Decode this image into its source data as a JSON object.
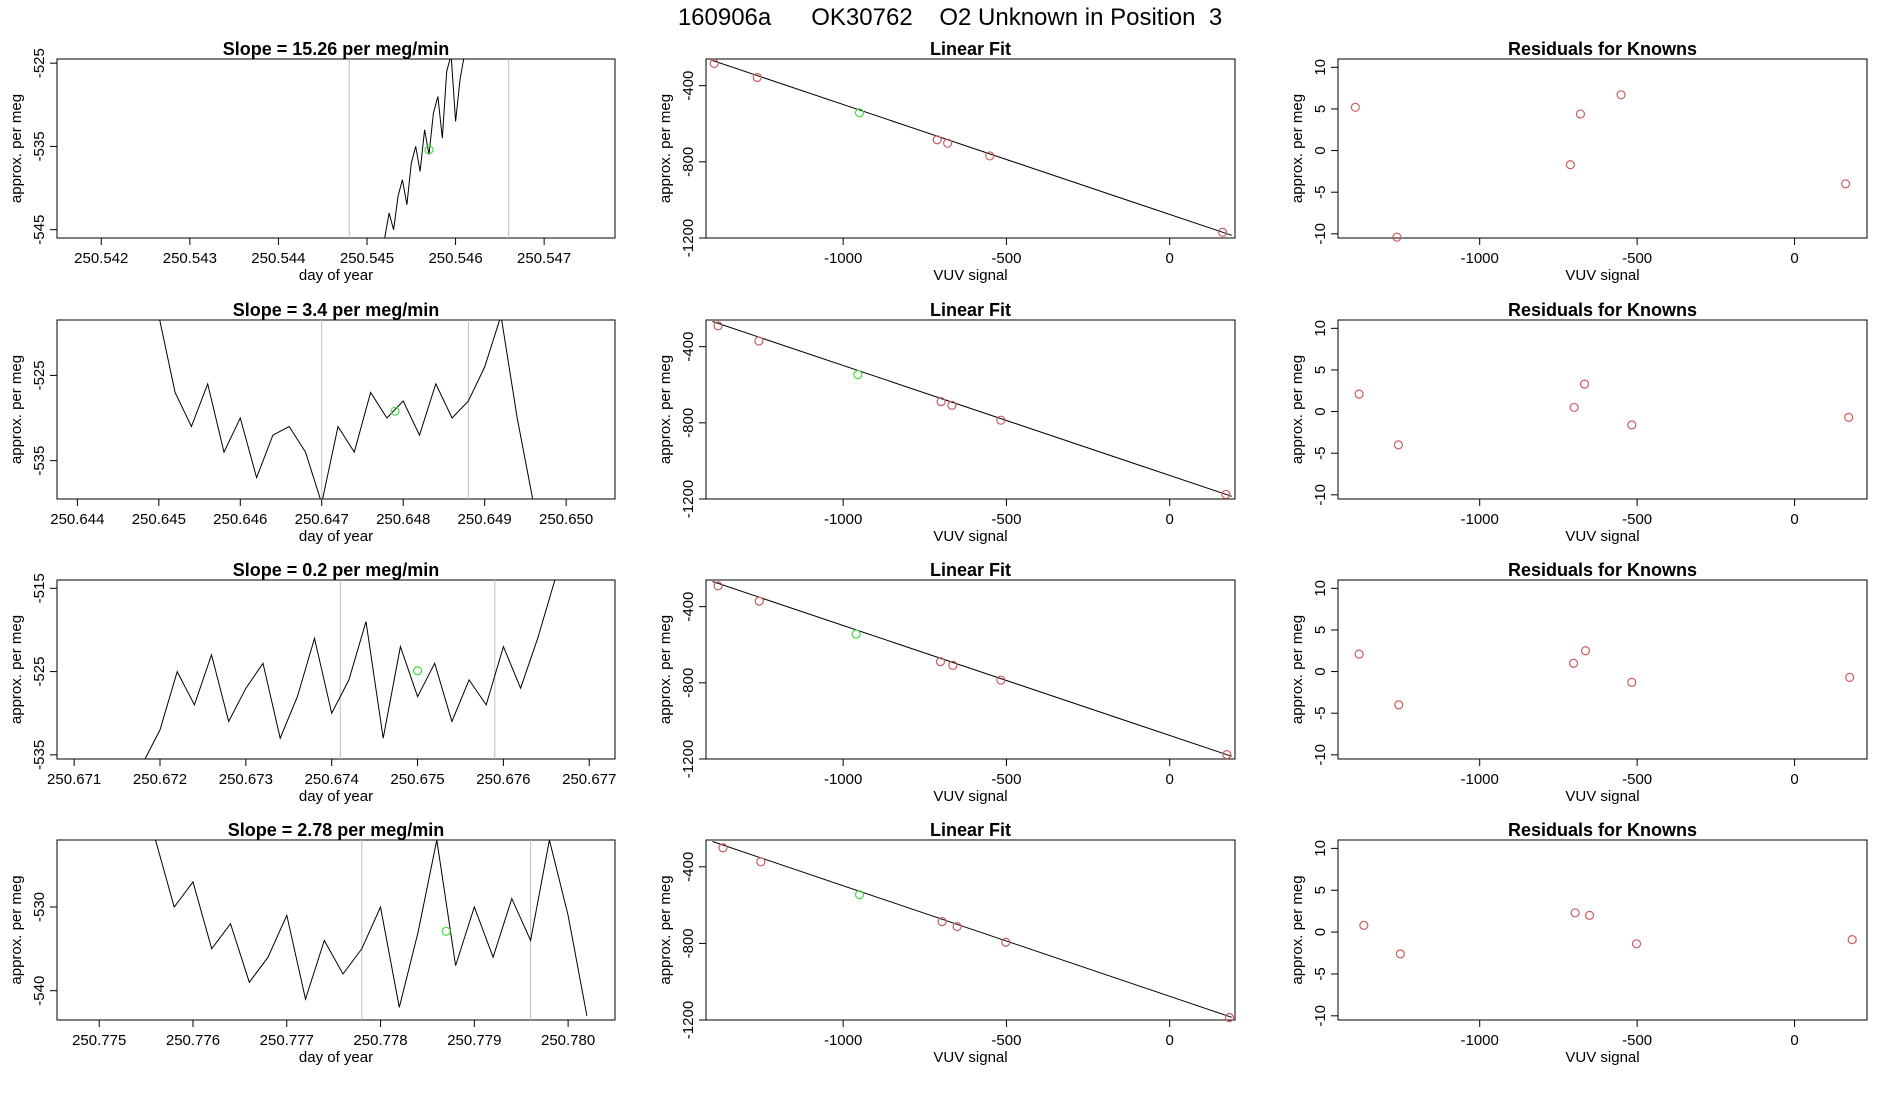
{
  "figure": {
    "title": "160906a      OK30762    O2 Unknown in Position  3",
    "colors": {
      "known_point": "#cd5c5c",
      "unknown_point": "#44dd44",
      "line": "#000000",
      "marker_line": "#bdbdbd"
    }
  },
  "chart_data": [
    {
      "type": "line",
      "row": 1,
      "col": 1,
      "title": "Slope =  15.26  per meg/min",
      "xlabel": "day of year",
      "ylabel": "approx. per meg",
      "xlim": [
        250.5415,
        250.5478
      ],
      "ylim": [
        -546,
        -524.5
      ],
      "xticks": [
        250.542,
        250.543,
        250.544,
        250.545,
        250.546,
        250.547
      ],
      "xtick_labels": [
        "250.542",
        "250.543",
        "250.544",
        "250.545",
        "250.546",
        "250.547"
      ],
      "yticks": [
        -545,
        -535,
        -525
      ],
      "ytick_labels": [
        "-545",
        "-535",
        "-525"
      ],
      "vlines": [
        250.5448,
        250.5466
      ],
      "series": [
        {
          "x": [
            250.5452,
            250.54525,
            250.5453,
            250.54535,
            250.5454,
            250.54545,
            250.5455,
            250.54555,
            250.5456,
            250.54565,
            250.5457,
            250.54575,
            250.5458,
            250.54585,
            250.5459,
            250.54595,
            250.546,
            250.54605,
            250.5461
          ],
          "y": [
            -546,
            -543,
            -545,
            -541,
            -539,
            -542,
            -537,
            -535,
            -538,
            -533,
            -536,
            -531,
            -529,
            -534,
            -526,
            -524,
            -532,
            -527,
            -524
          ]
        }
      ],
      "unknown_point": {
        "x": 250.5457,
        "y": -535.4
      }
    },
    {
      "type": "line",
      "row": 2,
      "col": 1,
      "title": "Slope =  3.4  per meg/min",
      "xlabel": "day of year",
      "ylabel": "approx. per meg",
      "xlim": [
        250.64375,
        250.6506
      ],
      "ylim": [
        -539.5,
        -518.5
      ],
      "xticks": [
        250.644,
        250.645,
        250.646,
        250.647,
        250.648,
        250.649,
        250.65
      ],
      "xtick_labels": [
        "250.644",
        "250.645",
        "250.646",
        "250.647",
        "250.648",
        "250.649",
        "250.650"
      ],
      "yticks": [
        -535,
        -525
      ],
      "ytick_labels": [
        "-535",
        "-525"
      ],
      "vlines": [
        250.647,
        250.6488
      ],
      "series": [
        {
          "x": [
            250.645,
            250.6452,
            250.6454,
            250.6456,
            250.6458,
            250.646,
            250.6462,
            250.6464,
            250.6466,
            250.6468,
            250.647,
            250.6472,
            250.6474,
            250.6476,
            250.6478,
            250.648,
            250.6482,
            250.6484,
            250.6486,
            250.6488,
            250.649,
            250.6492,
            250.6494,
            250.6496
          ],
          "y": [
            -518,
            -527,
            -531,
            -526,
            -534,
            -530,
            -537,
            -532,
            -531,
            -534,
            -540,
            -531,
            -534,
            -527,
            -530,
            -528,
            -532,
            -526,
            -530,
            -528,
            -524,
            -518,
            -530,
            -540
          ]
        }
      ],
      "unknown_point": {
        "x": 250.6479,
        "y": -529.2
      }
    },
    {
      "type": "line",
      "row": 3,
      "col": 1,
      "title": "Slope =  0.2  per meg/min",
      "xlabel": "day of year",
      "ylabel": "approx. per meg",
      "xlim": [
        250.6708,
        250.6773
      ],
      "ylim": [
        -535.5,
        -514
      ],
      "xticks": [
        250.671,
        250.672,
        250.673,
        250.674,
        250.675,
        250.676,
        250.677
      ],
      "xtick_labels": [
        "250.671",
        "250.672",
        "250.673",
        "250.674",
        "250.675",
        "250.676",
        "250.677"
      ],
      "yticks": [
        -535,
        -525,
        -515
      ],
      "ytick_labels": [
        "-535",
        "-525",
        "-515"
      ],
      "vlines": [
        250.6741,
        250.6759
      ],
      "series": [
        {
          "x": [
            250.6718,
            250.672,
            250.6722,
            250.6724,
            250.6726,
            250.6728,
            250.673,
            250.6732,
            250.6734,
            250.6736,
            250.6738,
            250.674,
            250.6742,
            250.6744,
            250.6746,
            250.6748,
            250.675,
            250.6752,
            250.6754,
            250.6756,
            250.6758,
            250.676,
            250.6762,
            250.6764,
            250.6766
          ],
          "y": [
            -536,
            -532,
            -525,
            -529,
            -523,
            -531,
            -527,
            -524,
            -533,
            -528,
            -521,
            -530,
            -526,
            -519,
            -533,
            -522,
            -528,
            -524,
            -531,
            -526,
            -529,
            -522,
            -527,
            -521,
            -514
          ]
        }
      ],
      "unknown_point": {
        "x": 250.675,
        "y": -524.9
      }
    },
    {
      "type": "line",
      "row": 4,
      "col": 1,
      "title": "Slope =  2.78  per meg/min",
      "xlabel": "day of year",
      "ylabel": "approx. per meg",
      "xlim": [
        250.77455,
        250.7805
      ],
      "ylim": [
        -543.5,
        -522
      ],
      "xticks": [
        250.775,
        250.776,
        250.777,
        250.778,
        250.779,
        250.78
      ],
      "xtick_labels": [
        "250.775",
        "250.776",
        "250.777",
        "250.778",
        "250.779",
        "250.780"
      ],
      "yticks": [
        -540,
        -530
      ],
      "ytick_labels": [
        "-540",
        "-530"
      ],
      "vlines": [
        250.7778,
        250.7796
      ],
      "series": [
        {
          "x": [
            250.7756,
            250.7758,
            250.776,
            250.7762,
            250.7764,
            250.7766,
            250.7768,
            250.777,
            250.7772,
            250.7774,
            250.7776,
            250.7778,
            250.778,
            250.7782,
            250.7784,
            250.7786,
            250.7788,
            250.779,
            250.7792,
            250.7794,
            250.7796,
            250.7798,
            250.78,
            250.7802
          ],
          "y": [
            -522,
            -530,
            -527,
            -535,
            -532,
            -539,
            -536,
            -531,
            -541,
            -534,
            -538,
            -535,
            -530,
            -542,
            -533,
            -522,
            -537,
            -530,
            -536,
            -529,
            -534,
            -522,
            -531,
            -543
          ]
        }
      ],
      "unknown_point": {
        "x": 250.7787,
        "y": -532.9
      }
    },
    {
      "type": "scatter",
      "row": 1,
      "col": 2,
      "title": "Linear Fit",
      "xlabel": "VUV signal",
      "ylabel": "approx. per meg",
      "xlim": [
        -1420,
        200
      ],
      "ylim": [
        -1200,
        -260
      ],
      "xticks": [
        -1000,
        -500,
        0
      ],
      "xtick_labels": [
        "-1000",
        "-500",
        "0"
      ],
      "yticks": [
        -1200,
        -800,
        -400
      ],
      "ytick_labels": [
        "-1200",
        "-800",
        "-400"
      ],
      "fit_line": {
        "x": [
          -1400,
          190
        ],
        "y": [
          -268,
          -1186
        ]
      },
      "known_points": {
        "x": [
          -1395,
          -1263,
          -712,
          -680,
          -551,
          162
        ],
        "y": [
          -283,
          -357,
          -684,
          -702,
          -769,
          -1170
        ]
      },
      "unknown_point": {
        "x": -950,
        "y": -543
      }
    },
    {
      "type": "scatter",
      "row": 2,
      "col": 2,
      "title": "Linear Fit",
      "xlabel": "VUV signal",
      "ylabel": "approx. per meg",
      "xlim": [
        -1420,
        200
      ],
      "ylim": [
        -1200,
        -260
      ],
      "xticks": [
        -1000,
        -500,
        0
      ],
      "xtick_labels": [
        "-1000",
        "-500",
        "0"
      ],
      "yticks": [
        -1200,
        -800,
        -400
      ],
      "ytick_labels": [
        "-1200",
        "-800",
        "-400"
      ],
      "fit_line": {
        "x": [
          -1400,
          190
        ],
        "y": [
          -268,
          -1186
        ]
      },
      "known_points": {
        "x": [
          -1383,
          -1258,
          -700,
          -667,
          -517,
          172
        ],
        "y": [
          -291,
          -370,
          -689,
          -708,
          -786,
          -1176
        ]
      },
      "unknown_point": {
        "x": -955,
        "y": -547
      }
    },
    {
      "type": "scatter",
      "row": 3,
      "col": 2,
      "title": "Linear Fit",
      "xlabel": "VUV signal",
      "ylabel": "approx. per meg",
      "xlim": [
        -1420,
        200
      ],
      "ylim": [
        -1200,
        -260
      ],
      "xticks": [
        -1000,
        -500,
        0
      ],
      "xtick_labels": [
        "-1000",
        "-500",
        "0"
      ],
      "yticks": [
        -1200,
        -800,
        -400
      ],
      "ytick_labels": [
        "-1200",
        "-800",
        "-400"
      ],
      "fit_line": {
        "x": [
          -1400,
          190
        ],
        "y": [
          -268,
          -1186
        ]
      },
      "known_points": {
        "x": [
          -1383,
          -1257,
          -702,
          -664,
          -517,
          175
        ],
        "y": [
          -291,
          -371,
          -689,
          -708,
          -786,
          -1177
        ]
      },
      "unknown_point": {
        "x": -960,
        "y": -544
      }
    },
    {
      "type": "scatter",
      "row": 4,
      "col": 2,
      "title": "Linear Fit",
      "xlabel": "VUV signal",
      "ylabel": "approx. per meg",
      "xlim": [
        -1420,
        200
      ],
      "ylim": [
        -1200,
        -260
      ],
      "xticks": [
        -1000,
        -500,
        0
      ],
      "xtick_labels": [
        "-1000",
        "-500",
        "0"
      ],
      "yticks": [
        -1200,
        -800,
        -400
      ],
      "ytick_labels": [
        "-1200",
        "-800",
        "-400"
      ],
      "fit_line": {
        "x": [
          -1400,
          190
        ],
        "y": [
          -268,
          -1186
        ]
      },
      "known_points": {
        "x": [
          -1368,
          -1252,
          -697,
          -651,
          -502,
          183
        ],
        "y": [
          -301,
          -374,
          -686,
          -712,
          -794,
          -1187
        ]
      },
      "unknown_point": {
        "x": -950,
        "y": -546
      }
    },
    {
      "type": "scatter",
      "row": 1,
      "col": 3,
      "title": "Residuals for Knowns",
      "xlabel": "VUV signal",
      "ylabel": "approx. per meg",
      "xlim": [
        -1450,
        230
      ],
      "ylim": [
        -10.5,
        11
      ],
      "xticks": [
        -1000,
        -500,
        0
      ],
      "xtick_labels": [
        "-1000",
        "-500",
        "0"
      ],
      "yticks": [
        -10,
        -5,
        0,
        5,
        10
      ],
      "ytick_labels": [
        "-10",
        "-5",
        "0",
        "5",
        "10"
      ],
      "known_points": {
        "x": [
          -1395,
          -1263,
          -712,
          -680,
          -551,
          162
        ],
        "y": [
          5.2,
          -10.4,
          -1.7,
          4.4,
          6.7,
          -4.0
        ]
      }
    },
    {
      "type": "scatter",
      "row": 2,
      "col": 3,
      "title": "Residuals for Knowns",
      "xlabel": "VUV signal",
      "ylabel": "approx. per meg",
      "xlim": [
        -1450,
        230
      ],
      "ylim": [
        -10.5,
        11
      ],
      "xticks": [
        -1000,
        -500,
        0
      ],
      "xtick_labels": [
        "-1000",
        "-500",
        "0"
      ],
      "yticks": [
        -10,
        -5,
        0,
        5,
        10
      ],
      "ytick_labels": [
        "-10",
        "-5",
        "0",
        "5",
        "10"
      ],
      "known_points": {
        "x": [
          -1383,
          -1258,
          -700,
          -667,
          -517,
          172
        ],
        "y": [
          2.1,
          -4.0,
          0.5,
          3.3,
          -1.6,
          -0.7
        ]
      }
    },
    {
      "type": "scatter",
      "row": 3,
      "col": 3,
      "title": "Residuals for Knowns",
      "xlabel": "VUV signal",
      "ylabel": "approx. per meg",
      "xlim": [
        -1450,
        230
      ],
      "ylim": [
        -10.5,
        11
      ],
      "xticks": [
        -1000,
        -500,
        0
      ],
      "xtick_labels": [
        "-1000",
        "-500",
        "0"
      ],
      "yticks": [
        -10,
        -5,
        0,
        5,
        10
      ],
      "ytick_labels": [
        "-10",
        "-5",
        "0",
        "5",
        "10"
      ],
      "known_points": {
        "x": [
          -1383,
          -1257,
          -702,
          -664,
          -517,
          175
        ],
        "y": [
          2.1,
          -4.0,
          1.0,
          2.5,
          -1.3,
          -0.7
        ]
      }
    },
    {
      "type": "scatter",
      "row": 4,
      "col": 3,
      "title": "Residuals for Knowns",
      "xlabel": "VUV signal",
      "ylabel": "approx. per meg",
      "xlim": [
        -1450,
        230
      ],
      "ylim": [
        -10.5,
        11
      ],
      "xticks": [
        -1000,
        -500,
        0
      ],
      "xtick_labels": [
        "-1000",
        "-500",
        "0"
      ],
      "yticks": [
        -10,
        -5,
        0,
        5,
        10
      ],
      "ytick_labels": [
        "-10",
        "-5",
        "0",
        "5",
        "10"
      ],
      "known_points": {
        "x": [
          -1368,
          -1252,
          -697,
          -651,
          -502,
          183
        ],
        "y": [
          0.8,
          -2.6,
          2.3,
          2.0,
          -1.4,
          -0.9
        ]
      }
    }
  ]
}
